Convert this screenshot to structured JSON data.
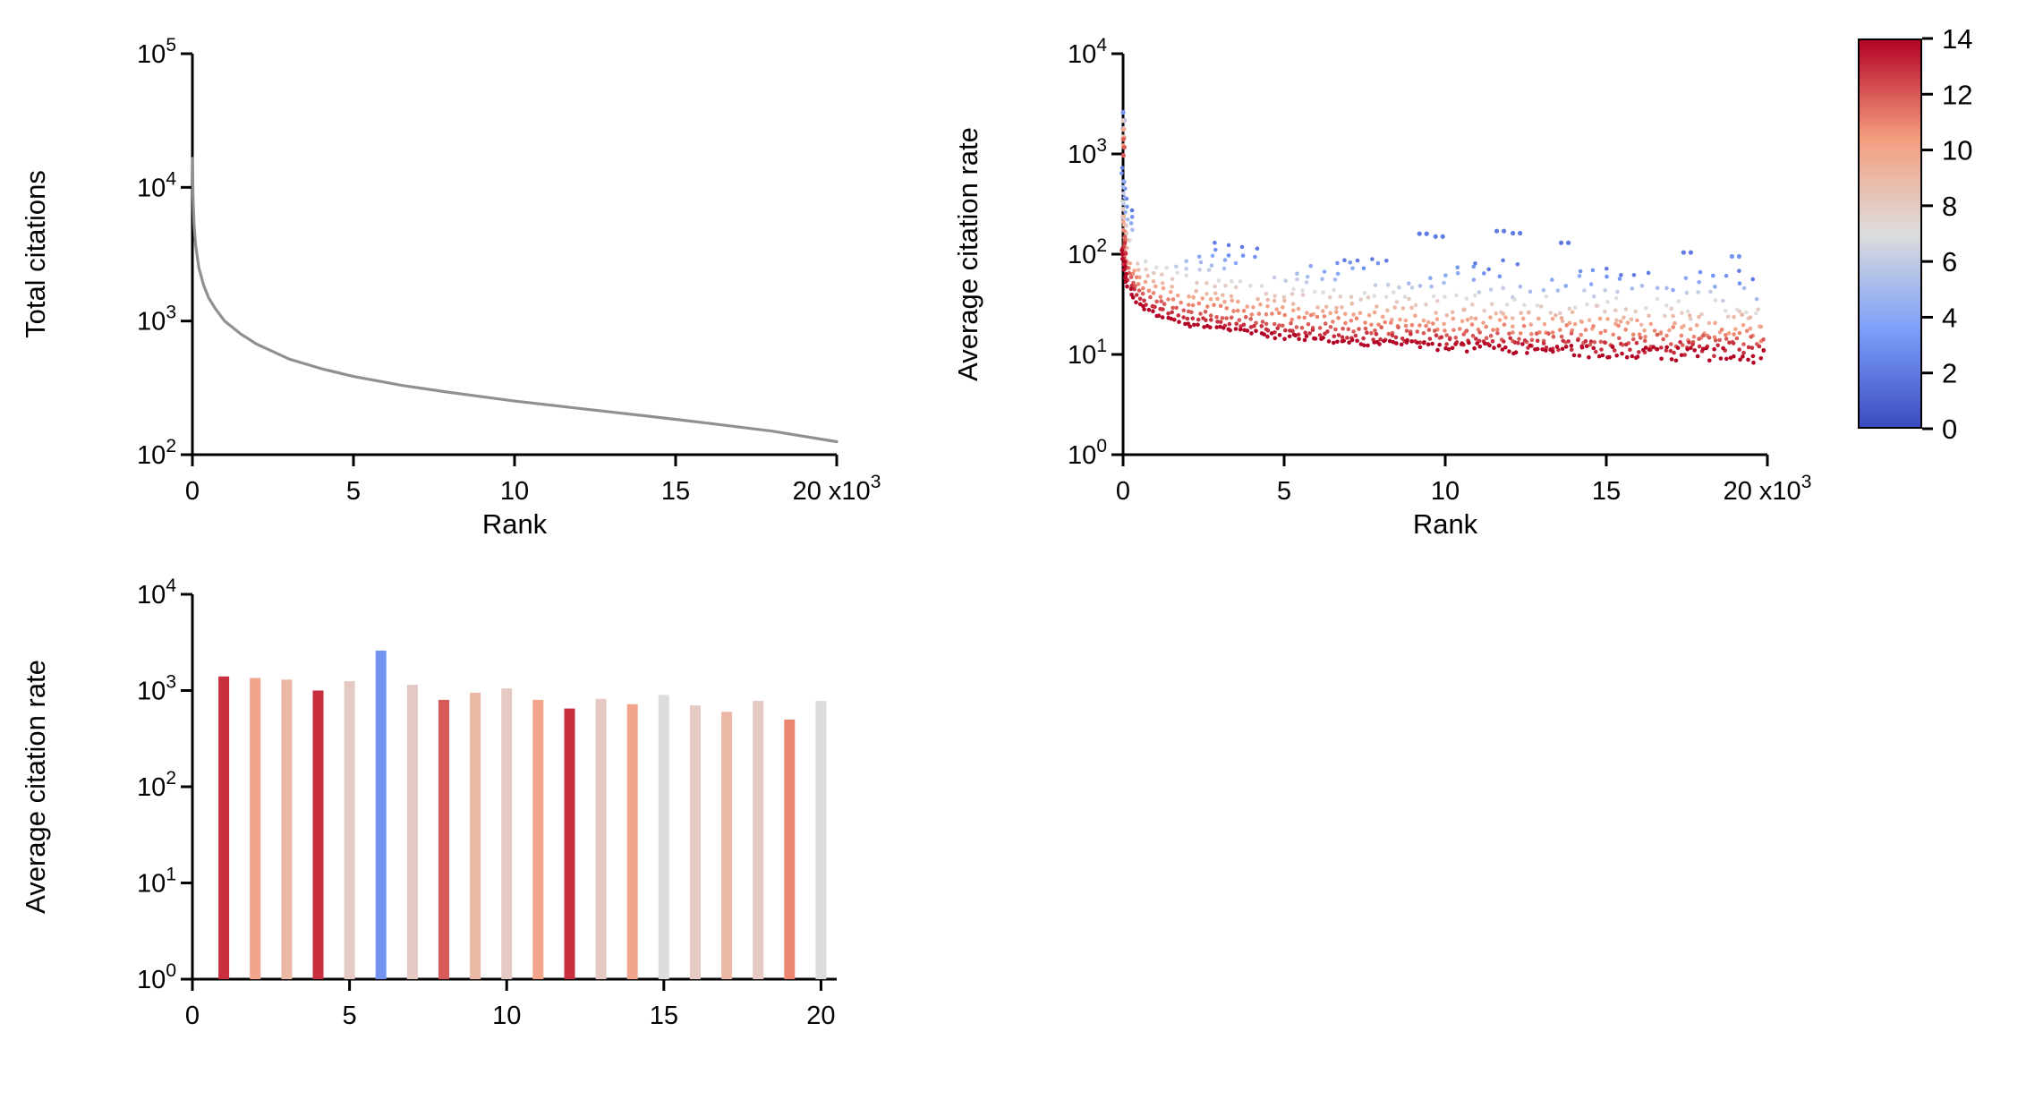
{
  "figure": {
    "background": "#ffffff",
    "axis_color": "#000000"
  },
  "colors": {
    "line_gray": "#909090",
    "coolwarm_stops": [
      [
        0.0,
        "#3b4cc0"
      ],
      [
        0.25,
        "#7c9ff9"
      ],
      [
        0.5,
        "#dddddd"
      ],
      [
        0.75,
        "#f59c7d"
      ],
      [
        1.0,
        "#b40426"
      ]
    ]
  },
  "colorbar": {
    "min": 0,
    "max": 14,
    "ticks": [
      14,
      12,
      10,
      8,
      6,
      4,
      2,
      0
    ]
  },
  "chart_data": [
    {
      "id": "total-citations-vs-rank",
      "type": "line",
      "xlabel": "Rank",
      "ylabel": "Total citations",
      "xlim": [
        0,
        20000
      ],
      "x_ticks": [
        0,
        5000,
        10000,
        15000,
        20000
      ],
      "x_tick_divisor": 1000,
      "x_end_label": {
        "base": "20 x10",
        "exp": "3"
      },
      "ylog_range": [
        2,
        5
      ],
      "grid": false,
      "points": [
        [
          5,
          16500
        ],
        [
          10,
          12000
        ],
        [
          20,
          8600
        ],
        [
          50,
          5300
        ],
        [
          100,
          3700
        ],
        [
          200,
          2500
        ],
        [
          350,
          1850
        ],
        [
          500,
          1500
        ],
        [
          700,
          1250
        ],
        [
          1000,
          1000
        ],
        [
          1500,
          800
        ],
        [
          2000,
          670
        ],
        [
          3000,
          520
        ],
        [
          4000,
          440
        ],
        [
          5000,
          385
        ],
        [
          6500,
          330
        ],
        [
          8000,
          292
        ],
        [
          10000,
          252
        ],
        [
          12000,
          222
        ],
        [
          14000,
          196
        ],
        [
          16000,
          172
        ],
        [
          18000,
          150
        ],
        [
          20000,
          125
        ]
      ]
    },
    {
      "id": "average-citation-rate-vs-rank",
      "type": "scatter",
      "xlabel": "Rank",
      "ylabel": "Average citation rate",
      "xlim": [
        0,
        20000
      ],
      "x_ticks": [
        0,
        5000,
        10000,
        15000,
        20000
      ],
      "x_tick_divisor": 1000,
      "x_end_label": {
        "base": "20 x10",
        "exp": "3"
      },
      "ylog_range": [
        0,
        4
      ],
      "grid": false,
      "colormap": "coolwarm",
      "color_value_range": [
        0,
        14
      ],
      "series": [
        {
          "value": 2,
          "points": [
            [
              10,
              742
            ],
            [
              30,
              522
            ],
            [
              100,
              355
            ],
            [
              500,
              212
            ],
            [
              1000,
              170
            ],
            [
              2000,
              136
            ],
            [
              5000,
              102
            ],
            [
              10000,
              81
            ],
            [
              15000,
              71
            ],
            [
              20000,
              65
            ]
          ]
        },
        {
          "value": 3,
          "points": [
            [
              10,
              633
            ],
            [
              30,
              445
            ],
            [
              100,
              303
            ],
            [
              500,
              181
            ],
            [
              1000,
              145
            ],
            [
              2000,
              116
            ],
            [
              5000,
              87
            ],
            [
              10000,
              69
            ],
            [
              15000,
              61
            ],
            [
              20000,
              56
            ]
          ]
        },
        {
          "value": 4,
          "points": [
            [
              10,
              537
            ],
            [
              30,
              378
            ],
            [
              100,
              257
            ],
            [
              500,
              154
            ],
            [
              1000,
              123
            ],
            [
              2000,
              99
            ],
            [
              5000,
              74
            ],
            [
              10000,
              59
            ],
            [
              15000,
              52
            ],
            [
              20000,
              47
            ]
          ]
        },
        {
          "value": 5,
          "points": [
            [
              10,
              458
            ],
            [
              30,
              322
            ],
            [
              100,
              219
            ],
            [
              500,
              131
            ],
            [
              1000,
              105
            ],
            [
              2000,
              84
            ],
            [
              5000,
              63
            ],
            [
              10000,
              50
            ],
            [
              15000,
              44
            ],
            [
              20000,
              40
            ]
          ]
        },
        {
          "value": 6,
          "points": [
            [
              10,
              393
            ],
            [
              30,
              276
            ],
            [
              100,
              188
            ],
            [
              500,
              112
            ],
            [
              1000,
              90
            ],
            [
              2000,
              72
            ],
            [
              5000,
              54
            ],
            [
              10000,
              43
            ],
            [
              15000,
              38
            ],
            [
              20000,
              35
            ]
          ]
        },
        {
          "value": 7,
          "points": [
            [
              10,
              332
            ],
            [
              30,
              233
            ],
            [
              100,
              159
            ],
            [
              500,
              95
            ],
            [
              1000,
              76
            ],
            [
              2000,
              61
            ],
            [
              5000,
              45
            ],
            [
              10000,
              36
            ],
            [
              15000,
              32
            ],
            [
              20000,
              29
            ]
          ]
        },
        {
          "value": 8,
          "points": [
            [
              10,
              284
            ],
            [
              30,
              200
            ],
            [
              100,
              136
            ],
            [
              500,
              81
            ],
            [
              1000,
              65
            ],
            [
              2000,
              52
            ],
            [
              5000,
              39
            ],
            [
              10000,
              31
            ],
            [
              15000,
              27
            ],
            [
              20000,
              25
            ]
          ]
        },
        {
          "value": 9,
          "points": [
            [
              10,
              240
            ],
            [
              30,
              169
            ],
            [
              100,
              115
            ],
            [
              500,
              69
            ],
            [
              1000,
              55
            ],
            [
              2000,
              44
            ],
            [
              5000,
              33
            ],
            [
              10000,
              26
            ],
            [
              15000,
              23
            ],
            [
              20000,
              21
            ]
          ]
        },
        {
          "value": 10,
          "points": [
            [
              10,
              205
            ],
            [
              30,
              144
            ],
            [
              100,
              98
            ],
            [
              500,
              59
            ],
            [
              1000,
              47
            ],
            [
              2000,
              38
            ],
            [
              5000,
              28
            ],
            [
              10000,
              22
            ],
            [
              15000,
              20
            ],
            [
              20000,
              18
            ]
          ]
        },
        {
          "value": 11,
          "points": [
            [
              10,
              175
            ],
            [
              30,
              123
            ],
            [
              100,
              84
            ],
            [
              500,
              50
            ],
            [
              1000,
              40
            ],
            [
              2000,
              32
            ],
            [
              5000,
              24
            ],
            [
              10000,
              19
            ],
            [
              15000,
              17
            ],
            [
              20000,
              15
            ]
          ]
        },
        {
          "value": 12,
          "points": [
            [
              10,
              148
            ],
            [
              30,
              104
            ],
            [
              100,
              71
            ],
            [
              500,
              42
            ],
            [
              1000,
              34
            ],
            [
              2000,
              27
            ],
            [
              5000,
              20
            ],
            [
              10000,
              16
            ],
            [
              15000,
              14
            ],
            [
              20000,
              13
            ]
          ]
        },
        {
          "value": 13,
          "points": [
            [
              10,
              127
            ],
            [
              30,
              89
            ],
            [
              100,
              61
            ],
            [
              500,
              36
            ],
            [
              1000,
              29
            ],
            [
              2000,
              23
            ],
            [
              5000,
              17
            ],
            [
              10000,
              14
            ],
            [
              15000,
              12
            ],
            [
              20000,
              11
            ]
          ]
        },
        {
          "value": 14,
          "points": [
            [
              10,
              109
            ],
            [
              30,
              77
            ],
            [
              100,
              52
            ],
            [
              500,
              31
            ],
            [
              1000,
              25
            ],
            [
              2000,
              20
            ],
            [
              5000,
              15
            ],
            [
              10000,
              12
            ],
            [
              15000,
              10.5
            ],
            [
              20000,
              9.6
            ]
          ]
        }
      ],
      "outliers_columns": [
        "rank",
        "rate",
        "color_value"
      ],
      "outliers": [
        [
          3,
          2600,
          3
        ],
        [
          4,
          2150,
          8
        ],
        [
          6,
          1750,
          10
        ],
        [
          8,
          1400,
          12
        ],
        [
          9200,
          160,
          2
        ],
        [
          9700,
          150,
          2
        ],
        [
          11600,
          170,
          2
        ],
        [
          12100,
          162,
          2
        ],
        [
          13600,
          130,
          2
        ],
        [
          17400,
          104,
          2
        ],
        [
          18900,
          95,
          3
        ]
      ]
    },
    {
      "id": "average-citation-rate-bars",
      "type": "bar",
      "xlabel": "",
      "ylabel": "Average citation rate",
      "xlim": [
        0,
        20.5
      ],
      "x_ticks": [
        0,
        5,
        10,
        15,
        20
      ],
      "x_tick_divisor": 1,
      "ylog_range": [
        0,
        4
      ],
      "grid": false,
      "bars_columns": [
        "x",
        "rate",
        "color_value"
      ],
      "bars": [
        [
          1,
          1400,
          13
        ],
        [
          2,
          1350,
          10
        ],
        [
          3,
          1300,
          9
        ],
        [
          4,
          1000,
          13
        ],
        [
          5,
          1250,
          8
        ],
        [
          6,
          2600,
          3
        ],
        [
          7,
          1150,
          8
        ],
        [
          8,
          800,
          12
        ],
        [
          9,
          950,
          9
        ],
        [
          10,
          1050,
          8
        ],
        [
          11,
          800,
          10
        ],
        [
          12,
          650,
          13
        ],
        [
          13,
          820,
          8
        ],
        [
          14,
          720,
          10
        ],
        [
          15,
          900,
          7
        ],
        [
          16,
          700,
          8
        ],
        [
          17,
          600,
          9
        ],
        [
          18,
          780,
          8
        ],
        [
          19,
          500,
          11
        ],
        [
          20,
          780,
          7
        ]
      ]
    }
  ]
}
